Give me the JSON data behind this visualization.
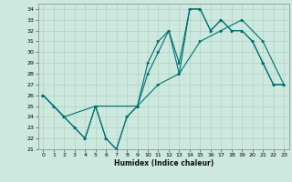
{
  "xlabel": "Humidex (Indice chaleur)",
  "xlim": [
    -0.5,
    23.5
  ],
  "ylim": [
    21,
    34.5
  ],
  "yticks": [
    21,
    22,
    23,
    24,
    25,
    26,
    27,
    28,
    29,
    30,
    31,
    32,
    33,
    34
  ],
  "xticks": [
    0,
    1,
    2,
    3,
    4,
    5,
    6,
    7,
    8,
    9,
    10,
    11,
    12,
    13,
    14,
    15,
    16,
    17,
    18,
    19,
    20,
    21,
    22,
    23
  ],
  "background_color": "#cce8df",
  "grid_color": "#aaccbb",
  "line_color": "#007070",
  "line1_x": [
    0,
    1,
    2,
    3,
    4,
    5,
    6,
    7,
    8,
    9,
    10,
    11,
    12,
    13,
    14,
    15,
    16,
    17,
    18,
    19,
    20,
    21,
    22,
    23
  ],
  "line1_y": [
    26,
    25,
    24,
    23,
    22,
    25,
    22,
    21,
    24,
    25,
    29,
    31,
    32,
    29,
    34,
    34,
    32,
    33,
    32,
    32,
    31,
    29,
    27,
    27
  ],
  "line2_x": [
    0,
    1,
    2,
    3,
    4,
    5,
    6,
    7,
    8,
    9,
    10,
    11,
    12,
    13,
    14,
    15,
    16,
    17,
    18,
    19,
    20,
    21,
    22,
    23
  ],
  "line2_y": [
    26,
    25,
    24,
    23,
    22,
    25,
    22,
    21,
    24,
    25,
    28,
    30,
    32,
    28,
    34,
    34,
    32,
    33,
    32,
    32,
    31,
    29,
    27,
    27
  ],
  "line3_x": [
    0,
    2,
    5,
    9,
    11,
    13,
    15,
    17,
    19,
    21,
    23
  ],
  "line3_y": [
    26,
    24,
    25,
    25,
    27,
    28,
    31,
    32,
    33,
    31,
    27
  ]
}
